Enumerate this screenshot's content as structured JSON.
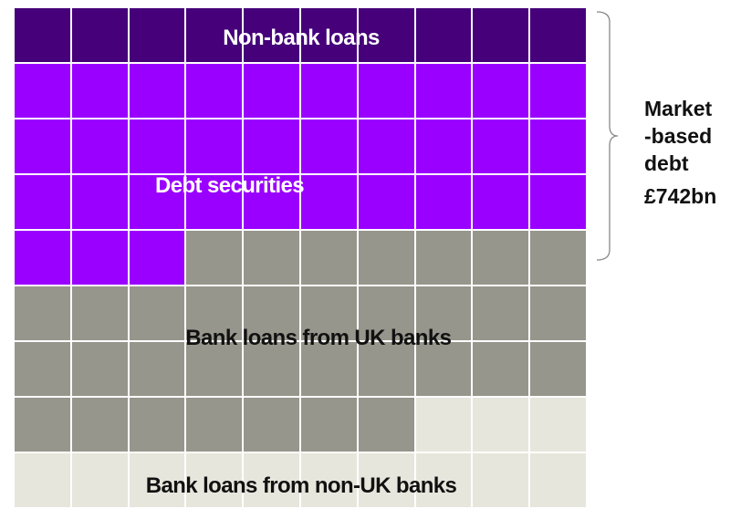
{
  "chart_data": {
    "type": "waffle",
    "grid_columns": 10,
    "grid_rows": 9,
    "categories": [
      "Non-bank loans",
      "Debt securities",
      "Bank loans from UK banks",
      "Bank loans from non-UK banks"
    ],
    "values": [
      10,
      33,
      34,
      13
    ],
    "colors": [
      "#45007a",
      "#9a00ff",
      "#96968c",
      "#e6e6dc"
    ],
    "label_colors": [
      "#ffffff",
      "#ffffff",
      "#111111",
      "#111111"
    ],
    "bracket": {
      "label_lines": [
        "Market",
        "-based",
        "debt"
      ],
      "value": "£742bn",
      "covers": [
        "Non-bank loans",
        "Debt securities"
      ]
    }
  }
}
